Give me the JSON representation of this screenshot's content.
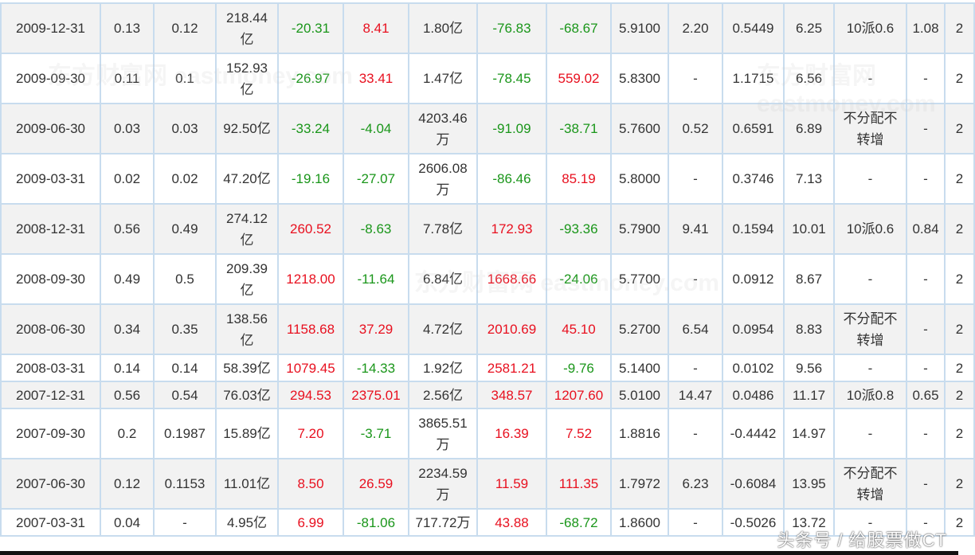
{
  "watermark": "东方财富网 eastmoney.com",
  "overlay_text": "头条号 / 给股票做CT",
  "colors": {
    "positive": "#e8101f",
    "negative": "#1a961a",
    "border": "#c8dcee",
    "row_alt": "#f2f2f2"
  },
  "colored_columns": [
    4,
    5,
    7,
    8
  ],
  "rows": [
    [
      "2009-12-31",
      "0.13",
      "0.12",
      "218.44亿",
      "-20.31",
      "8.41",
      "1.80亿",
      "-76.83",
      "-68.67",
      "5.9100",
      "2.20",
      "0.5449",
      "6.25",
      "10派0.6",
      "1.08",
      "2"
    ],
    [
      "2009-09-30",
      "0.11",
      "0.1",
      "152.93亿",
      "-26.97",
      "33.41",
      "1.47亿",
      "-78.45",
      "559.02",
      "5.8300",
      "-",
      "1.1715",
      "6.56",
      "-",
      "-",
      "2"
    ],
    [
      "2009-06-30",
      "0.03",
      "0.03",
      "92.50亿",
      "-33.24",
      "-4.04",
      "4203.46万",
      "-91.09",
      "-38.71",
      "5.7600",
      "0.52",
      "0.6591",
      "6.89",
      "不分配不转增",
      "-",
      "2"
    ],
    [
      "2009-03-31",
      "0.02",
      "0.02",
      "47.20亿",
      "-19.16",
      "-27.07",
      "2606.08万",
      "-86.46",
      "85.19",
      "5.8000",
      "-",
      "0.3746",
      "7.13",
      "-",
      "-",
      "2"
    ],
    [
      "2008-12-31",
      "0.56",
      "0.49",
      "274.12亿",
      "260.52",
      "-8.63",
      "7.78亿",
      "172.93",
      "-93.36",
      "5.7900",
      "9.41",
      "0.1594",
      "10.01",
      "10派0.6",
      "0.84",
      "2"
    ],
    [
      "2008-09-30",
      "0.49",
      "0.5",
      "209.39亿",
      "1218.00",
      "-11.64",
      "6.84亿",
      "1668.66",
      "-24.06",
      "5.7700",
      "-",
      "0.0912",
      "8.67",
      "-",
      "-",
      "2"
    ],
    [
      "2008-06-30",
      "0.34",
      "0.35",
      "138.56亿",
      "1158.68",
      "37.29",
      "4.72亿",
      "2010.69",
      "45.10",
      "5.2700",
      "6.54",
      "0.0954",
      "8.83",
      "不分配不转增",
      "-",
      "2"
    ],
    [
      "2008-03-31",
      "0.14",
      "0.14",
      "58.39亿",
      "1079.45",
      "-14.33",
      "1.92亿",
      "2581.21",
      "-9.76",
      "5.1400",
      "-",
      "0.0102",
      "9.56",
      "-",
      "-",
      "2"
    ],
    [
      "2007-12-31",
      "0.56",
      "0.54",
      "76.03亿",
      "294.53",
      "2375.01",
      "2.56亿",
      "348.57",
      "1207.60",
      "5.0100",
      "14.47",
      "0.0486",
      "11.17",
      "10派0.8",
      "0.65",
      "2"
    ],
    [
      "2007-09-30",
      "0.2",
      "0.1987",
      "15.89亿",
      "7.20",
      "-3.71",
      "3865.51万",
      "16.39",
      "7.52",
      "1.8816",
      "-",
      "-0.4442",
      "14.97",
      "-",
      "-",
      "2"
    ],
    [
      "2007-06-30",
      "0.12",
      "0.1153",
      "11.01亿",
      "8.50",
      "26.59",
      "2234.59万",
      "11.59",
      "111.35",
      "1.7972",
      "6.23",
      "-0.6084",
      "13.95",
      "不分配不转增",
      "-",
      "2"
    ],
    [
      "2007-03-31",
      "0.04",
      "-",
      "4.95亿",
      "6.99",
      "-81.06",
      "717.72万",
      "43.88",
      "-68.72",
      "1.8600",
      "-",
      "-0.5026",
      "13.72",
      "-",
      "-",
      "2"
    ]
  ]
}
